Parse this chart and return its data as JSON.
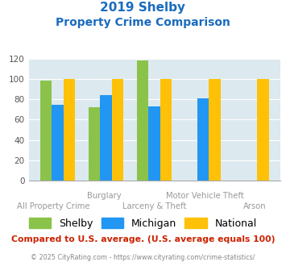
{
  "title_line1": "2019 Shelby",
  "title_line2": "Property Crime Comparison",
  "shelby": [
    98,
    72,
    118,
    0,
    0
  ],
  "michigan": [
    75,
    84,
    73,
    81,
    0
  ],
  "national": [
    100,
    100,
    100,
    100,
    100
  ],
  "top_labels": [
    "",
    "Burglary",
    "",
    "Motor Vehicle Theft",
    ""
  ],
  "bottom_labels": [
    "All Property Crime",
    "",
    "Larceny & Theft",
    "",
    "Arson"
  ],
  "shelby_color": "#8bc34a",
  "michigan_color": "#2196f3",
  "national_color": "#ffc107",
  "bg_color": "#dce9ef",
  "title_color": "#1a6bbf",
  "ylabel_max": 120,
  "yticks": [
    0,
    20,
    40,
    60,
    80,
    100,
    120
  ],
  "footer_text": "Compared to U.S. average. (U.S. average equals 100)",
  "footer_color": "#cc2200",
  "copyright_text": "© 2025 CityRating.com - https://www.cityrating.com/crime-statistics/",
  "copyright_color": "#888888",
  "legend_labels": [
    "Shelby",
    "Michigan",
    "National"
  ]
}
